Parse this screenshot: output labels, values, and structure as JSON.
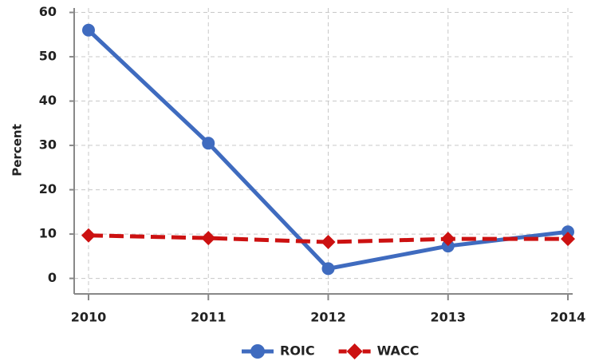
{
  "chart_data": {
    "type": "line",
    "y_label": "Percent",
    "categories": [
      "2010",
      "2011",
      "2012",
      "2013",
      "2014"
    ],
    "series": [
      {
        "name": "ROIC",
        "color": "#3f6bbf",
        "marker": "circle",
        "dash": false,
        "values": [
          56,
          30.5,
          2.2,
          7.3,
          10.5
        ]
      },
      {
        "name": "WACC",
        "color": "#cc1111",
        "marker": "diamond",
        "dash": true,
        "values": [
          9.7,
          9.1,
          8.2,
          8.9,
          8.9
        ]
      }
    ],
    "ylim": [
      -3.5,
      61
    ],
    "yticks": [
      0,
      10,
      20,
      30,
      40,
      50,
      60
    ],
    "grid": true,
    "legend": "bottom"
  }
}
